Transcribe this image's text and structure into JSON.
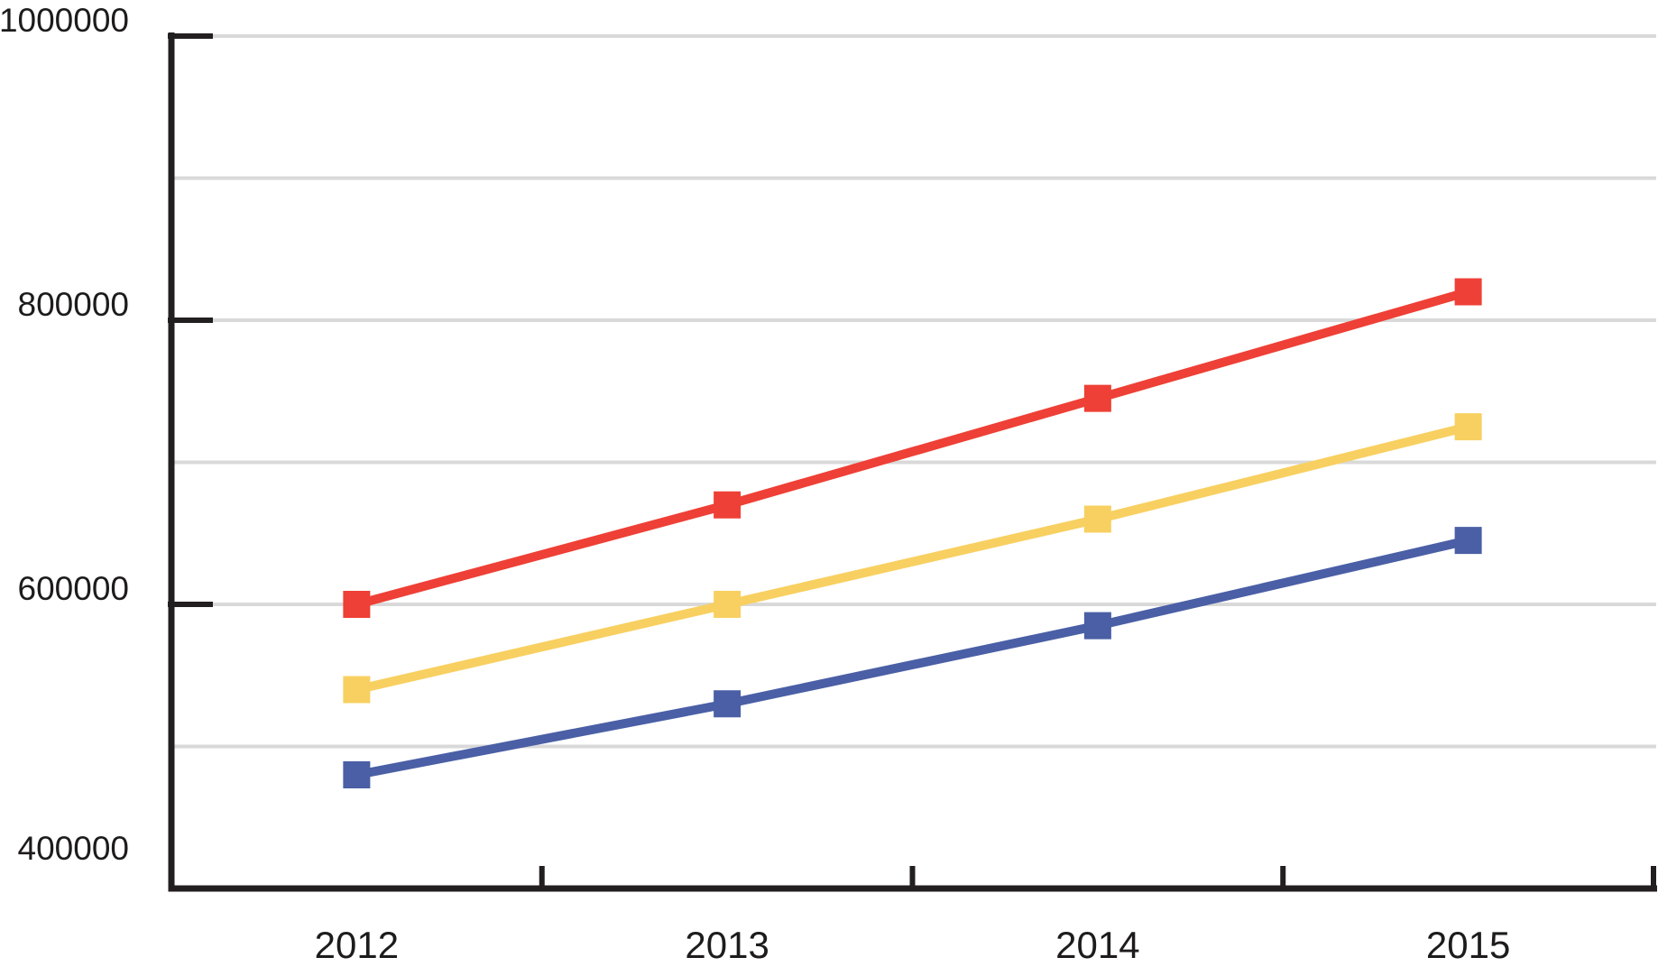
{
  "chart_data": {
    "type": "line",
    "title": "",
    "xlabel": "",
    "ylabel": "",
    "x_categories": [
      "2012",
      "2013",
      "2014",
      "2015"
    ],
    "series": [
      {
        "name": "red",
        "color": "#ee4036",
        "marker": "square",
        "values": [
          600000,
          670000,
          745000,
          820000
        ]
      },
      {
        "name": "yellow",
        "color": "#f8d061",
        "marker": "square",
        "values": [
          540000,
          600000,
          660000,
          725000
        ]
      },
      {
        "name": "blue",
        "color": "#4a5fa5",
        "marker": "square",
        "values": [
          480000,
          530000,
          585000,
          645000
        ]
      }
    ],
    "ylim": [
      400000,
      1000000
    ],
    "y_ticks": [
      400000,
      600000,
      800000,
      1000000
    ],
    "y_tick_labels": [
      "400000",
      "600000",
      "800000",
      "1000000"
    ],
    "y_grid_step": 100000,
    "grid": true,
    "legend": "none",
    "style": {
      "background": "#ffffff",
      "axis_color": "#231f20",
      "grid_color": "#d9d9d9",
      "label_color": "#1d1b1b",
      "line_width": 10,
      "marker_size": 30
    }
  }
}
